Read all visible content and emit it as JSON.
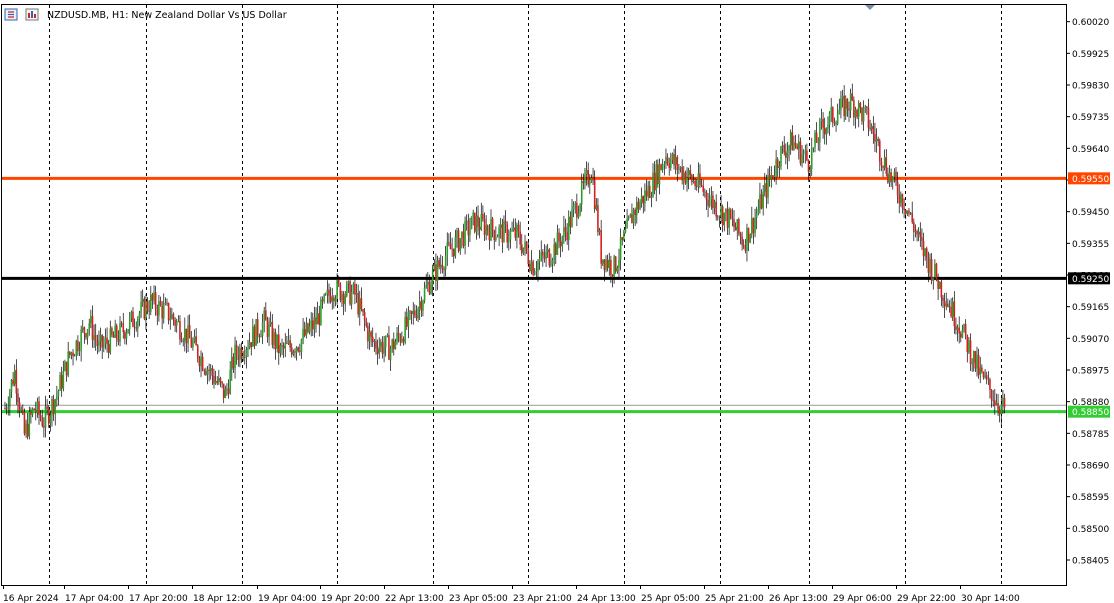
{
  "header": {
    "title": "NZDUSD.MB, H1:  New Zealand Dollar Vs US Dollar",
    "icons": [
      "candles-icon",
      "indicator-icon"
    ]
  },
  "colors": {
    "bull": "#2aa02a",
    "bear": "#d42020",
    "wick": "#000000",
    "grid": "#000000",
    "axis": "#000000",
    "resistance": "#ff4500",
    "pivot": "#000000",
    "support": "#32cd32",
    "current_line": "#999999"
  },
  "chart_data": {
    "type": "candlestick",
    "symbol": "NZDUSD.MB",
    "timeframe": "H1",
    "ylim": [
      0.5833,
      0.6007
    ],
    "y_ticks": [
      "0.60020",
      "0.59925",
      "0.59830",
      "0.59735",
      "0.59640",
      "0.59545",
      "0.59450",
      "0.59355",
      "0.59260",
      "0.59165",
      "0.59070",
      "0.58975",
      "0.58880",
      "0.58785",
      "0.58690",
      "0.58595",
      "0.58500",
      "0.58405"
    ],
    "x_ticks": [
      "16 Apr 2024",
      "17 Apr 04:00",
      "17 Apr 20:00",
      "18 Apr 12:00",
      "19 Apr 04:00",
      "19 Apr 20:00",
      "22 Apr 13:00",
      "23 Apr 05:00",
      "23 Apr 21:00",
      "24 Apr 13:00",
      "25 Apr 05:00",
      "25 Apr 21:00",
      "26 Apr 13:00",
      "29 Apr 06:00",
      "29 Apr 22:00",
      "30 Apr 14:00"
    ],
    "levels": [
      {
        "label": "0.59550",
        "value": 0.5955,
        "color": "#ff4500"
      },
      {
        "label": "0.59250",
        "value": 0.5925,
        "color": "#000000"
      },
      {
        "label": "0.58850",
        "value": 0.5885,
        "color": "#32cd32"
      }
    ],
    "grid": "vertical-dashed",
    "anchors": [
      [
        0,
        0.5886
      ],
      [
        6,
        0.5897
      ],
      [
        12,
        0.5878
      ],
      [
        18,
        0.5886
      ],
      [
        24,
        0.5882
      ],
      [
        32,
        0.589
      ],
      [
        40,
        0.5902
      ],
      [
        52,
        0.5912
      ],
      [
        58,
        0.5904
      ],
      [
        70,
        0.5908
      ],
      [
        80,
        0.5913
      ],
      [
        90,
        0.5918
      ],
      [
        102,
        0.5914
      ],
      [
        112,
        0.5908
      ],
      [
        124,
        0.5899
      ],
      [
        136,
        0.589
      ],
      [
        142,
        0.5902
      ],
      [
        150,
        0.5906
      ],
      [
        160,
        0.5912
      ],
      [
        170,
        0.5903
      ],
      [
        182,
        0.5906
      ],
      [
        192,
        0.5912
      ],
      [
        202,
        0.5922
      ],
      [
        216,
        0.592
      ],
      [
        226,
        0.5906
      ],
      [
        238,
        0.5904
      ],
      [
        250,
        0.5912
      ],
      [
        262,
        0.5924
      ],
      [
        272,
        0.5932
      ],
      [
        290,
        0.5942
      ],
      [
        304,
        0.5939
      ],
      [
        316,
        0.5938
      ],
      [
        326,
        0.5929
      ],
      [
        336,
        0.5932
      ],
      [
        346,
        0.5939
      ],
      [
        354,
        0.5948
      ],
      [
        362,
        0.5958
      ],
      [
        368,
        0.5932
      ],
      [
        376,
        0.5928
      ],
      [
        388,
        0.5945
      ],
      [
        398,
        0.5952
      ],
      [
        408,
        0.5962
      ],
      [
        418,
        0.5957
      ],
      [
        430,
        0.5952
      ],
      [
        440,
        0.5946
      ],
      [
        448,
        0.5942
      ],
      [
        456,
        0.5936
      ],
      [
        462,
        0.5942
      ],
      [
        470,
        0.5952
      ],
      [
        478,
        0.5962
      ],
      [
        486,
        0.5966
      ],
      [
        496,
        0.596
      ],
      [
        504,
        0.597
      ],
      [
        514,
        0.5975
      ],
      [
        522,
        0.5978
      ],
      [
        532,
        0.5973
      ],
      [
        538,
        0.5966
      ],
      [
        546,
        0.5956
      ],
      [
        556,
        0.5947
      ],
      [
        566,
        0.5934
      ],
      [
        576,
        0.5924
      ],
      [
        590,
        0.591
      ],
      [
        602,
        0.5896
      ],
      [
        614,
        0.5887
      ],
      [
        620,
        0.5885
      ]
    ],
    "n": 621,
    "seed": 7
  }
}
